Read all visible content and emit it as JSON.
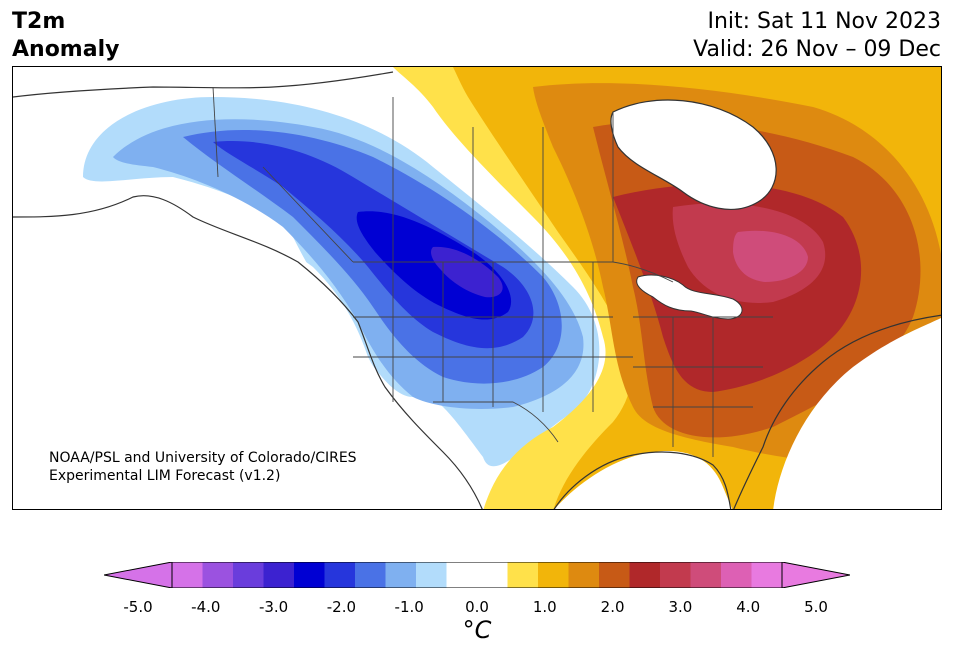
{
  "title": {
    "left_line1": "T2m",
    "left_line2": "Anomaly",
    "init": "Init: Sat 11 Nov 2023",
    "valid": "Valid: 26 Nov – 09 Dec"
  },
  "credit": {
    "line1": "NOAA/PSL and University of Colorado/CIRES",
    "line2": "Experimental LIM Forecast (v1.2)"
  },
  "colorbar": {
    "unit": "°C",
    "ticks": [
      "-5.0",
      "-4.0",
      "-3.0",
      "-2.0",
      "-1.0",
      "0.0",
      "1.0",
      "2.0",
      "3.0",
      "4.0",
      "5.0"
    ],
    "colors": [
      "#d572e8",
      "#9b52e0",
      "#6a3ddc",
      "#3c22d0",
      "#0000d3",
      "#2636dc",
      "#4a72e6",
      "#7fb0f0",
      "#b2dcfb",
      "#ffffff",
      "#ffffff",
      "#ffe14a",
      "#f2b50a",
      "#de8a10",
      "#c75a16",
      "#b0282a",
      "#c23a4e",
      "#cf4c7a",
      "#dd60b4",
      "#e87ae0"
    ],
    "low_extend_color": "#d572e8",
    "high_extend_color": "#e87ae0"
  }
}
